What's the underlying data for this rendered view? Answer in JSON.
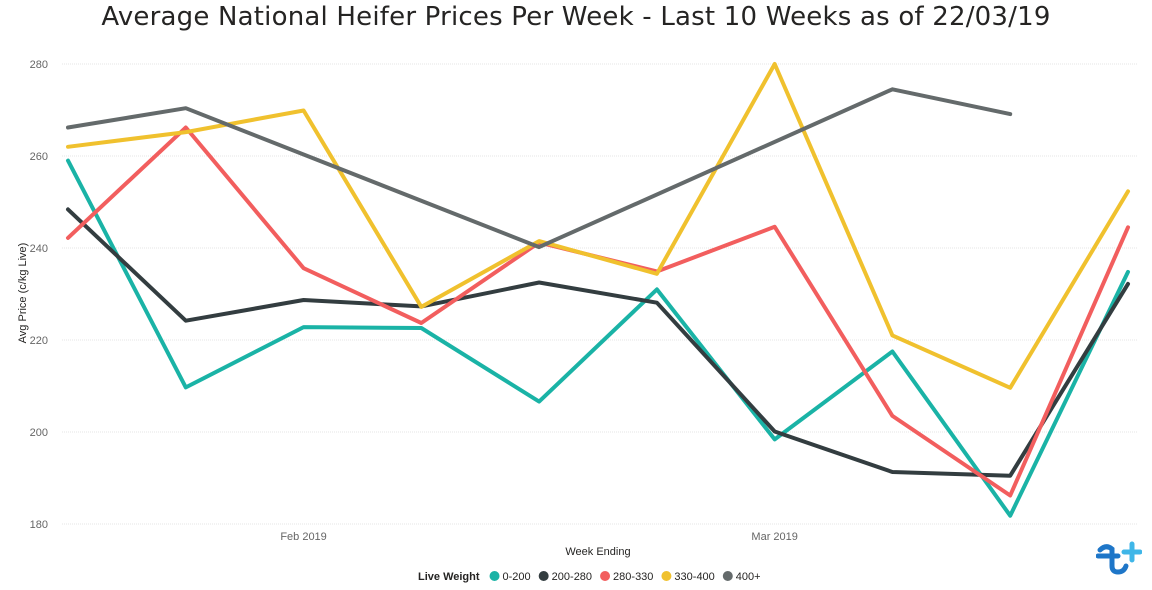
{
  "chart_data": {
    "type": "line",
    "title": "Average National Heifer Prices Per Week - Last 10 Weeks as of 22/03/19",
    "xlabel": "Week Ending",
    "ylabel": "Avg Price (c/kg Live)",
    "ylim": [
      180,
      280
    ],
    "yticks": [
      180,
      200,
      220,
      240,
      260,
      280
    ],
    "x": [
      "2019-01-18",
      "2019-01-25",
      "2019-02-01",
      "2019-02-08",
      "2019-02-15",
      "2019-02-22",
      "2019-03-01",
      "2019-03-08",
      "2019-03-15",
      "2019-03-22"
    ],
    "xticks": [
      {
        "label": "Feb 2019",
        "date": "2019-02-01"
      },
      {
        "label": "Mar 2019",
        "date": "2019-03-01"
      }
    ],
    "grid": true,
    "legend": {
      "title": "Live Weight",
      "position": "bottom"
    },
    "series": [
      {
        "name": "0-200",
        "color": "#1AB3A6",
        "values": [
          259,
          209.7,
          222.8,
          222.6,
          206.6,
          231,
          198.4,
          217.5,
          181.8,
          234.8
        ]
      },
      {
        "name": "200-280",
        "color": "#333D40",
        "values": [
          248.4,
          224.2,
          228.7,
          227.3,
          232.5,
          228.1,
          200.1,
          191.3,
          190.5,
          232.2
        ]
      },
      {
        "name": "280-330",
        "color": "#F25E5E",
        "values": [
          242.2,
          266.2,
          235.6,
          223.7,
          241.2,
          234.9,
          244.6,
          203.5,
          186.2,
          244.5
        ]
      },
      {
        "name": "330-400",
        "color": "#F0C12E",
        "values": [
          262,
          265.2,
          269.9,
          227.2,
          241.5,
          234.4,
          280,
          221,
          209.6,
          252.3
        ]
      },
      {
        "name": "400+",
        "color": "#646A6B",
        "values": [
          266.2,
          270.4,
          null,
          null,
          240.2,
          null,
          null,
          274.5,
          269.1,
          null
        ]
      }
    ]
  }
}
